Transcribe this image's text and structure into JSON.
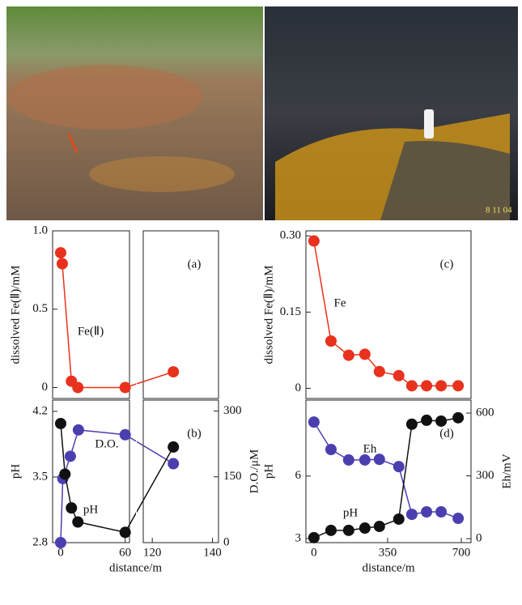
{
  "photos": {
    "right_stamp": "8 11 04"
  },
  "chart_data": [
    {
      "type": "line",
      "panel_label": "(a)",
      "ylabel": "dissolved Fe(Ⅱ)/mM",
      "xlim": [
        -7.5,
        142
      ],
      "x_break": [
        64,
        117
      ],
      "ylim": [
        -0.07,
        1.0
      ],
      "yticks": [
        0,
        0.5,
        {
          "value": 1,
          "label": "1.0"
        }
      ],
      "series": [
        {
          "name": "Fe(Ⅱ)",
          "color": "#e8321e",
          "x": [
            0,
            1.5,
            10,
            16,
            60,
            127
          ],
          "values": [
            0.86,
            0.79,
            0.04,
            0.0,
            0.0,
            0.1
          ]
        }
      ]
    },
    {
      "type": "line",
      "panel_label": "(b)",
      "ylabel": "pH",
      "y2label": "D.O./μM",
      "xlabel": "distance/m",
      "xlim": [
        -7.5,
        142
      ],
      "x_break": [
        64,
        117
      ],
      "xticks": [
        0,
        60,
        120,
        140
      ],
      "ylim": [
        2.8,
        4.32
      ],
      "yticks": [
        2.8,
        3.5,
        4.2
      ],
      "y2lim": [
        0,
        325
      ],
      "y2ticks": [
        0,
        150,
        300
      ],
      "series": [
        {
          "name": "D.O.",
          "color": "#4b3fb0",
          "axis": "y2",
          "x": [
            0,
            2,
            9,
            16.5,
            60,
            127
          ],
          "values": [
            0,
            146,
            197,
            257,
            246,
            180
          ]
        },
        {
          "name": "pH",
          "color": "#111111",
          "x": [
            0,
            4,
            10,
            16,
            60,
            127
          ],
          "values": [
            4.07,
            3.53,
            3.17,
            3.02,
            2.91,
            3.82
          ]
        }
      ]
    },
    {
      "type": "line",
      "panel_label": "(c)",
      "ylabel": "dissolved Fe(Ⅱ)/mM",
      "xlim": [
        -38,
        746
      ],
      "ylim": [
        -0.02,
        0.31
      ],
      "yticks": [
        0,
        0.15,
        {
          "value": 0.3,
          "label": "0.30"
        }
      ],
      "series": [
        {
          "name": "Fe",
          "color": "#e8321e",
          "x": [
            0,
            81,
            165,
            242,
            311,
            403,
            465,
            535,
            604,
            685
          ],
          "values": [
            0.29,
            0.093,
            0.065,
            0.067,
            0.033,
            0.025,
            0.005,
            0.005,
            0.005,
            0.005
          ]
        }
      ]
    },
    {
      "type": "line",
      "panel_label": "(d)",
      "ylabel": "pH",
      "y2label": "Eh/mV",
      "xlabel": "distance/m",
      "xlim": [
        -38,
        746
      ],
      "xticks": [
        0,
        350,
        700
      ],
      "ylim": [
        2.8,
        9.65
      ],
      "yticks": [
        3,
        6
      ],
      "y2lim": [
        -19,
        662
      ],
      "y2ticks": [
        0,
        300,
        600
      ],
      "series": [
        {
          "name": "Eh",
          "color": "#4b3fb0",
          "axis": "y2",
          "x": [
            0,
            81,
            165,
            242,
            311,
            403,
            465,
            535,
            604,
            685
          ],
          "values": [
            557,
            426,
            376,
            376,
            379,
            344,
            116,
            128,
            128,
            97
          ]
        },
        {
          "name": "pH",
          "color": "#111111",
          "x": [
            0,
            81,
            165,
            242,
            311,
            403,
            465,
            535,
            604,
            685
          ],
          "values": [
            3.04,
            3.39,
            3.39,
            3.5,
            3.58,
            3.93,
            8.49,
            8.68,
            8.64,
            8.8
          ]
        }
      ]
    }
  ]
}
